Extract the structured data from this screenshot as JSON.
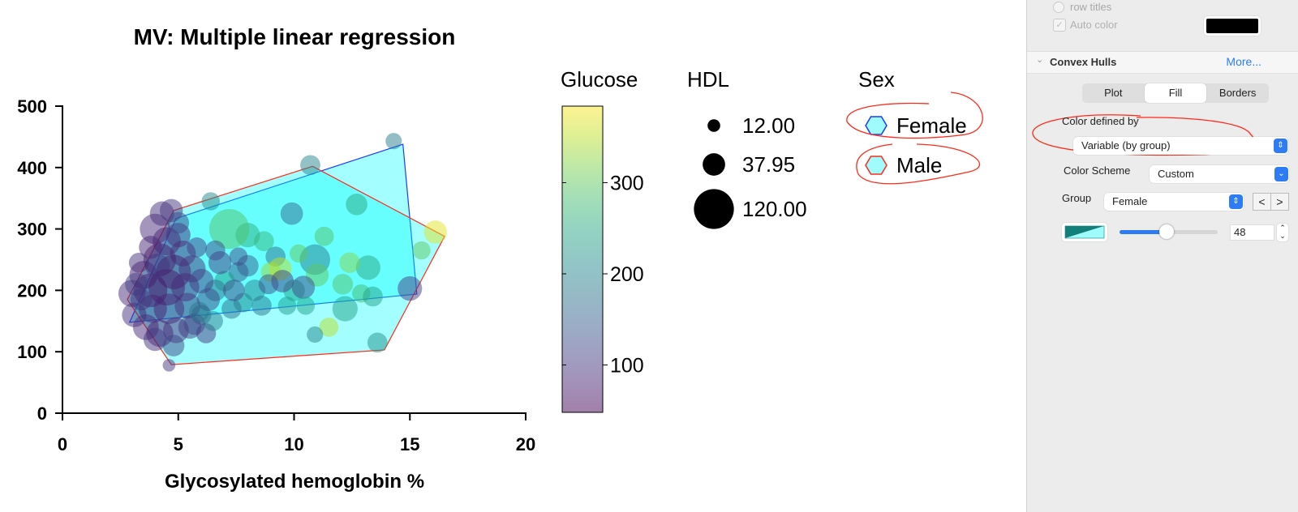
{
  "chart_data": {
    "type": "scatter",
    "title": "MV: Multiple linear regression",
    "xlabel": "Glycosylated hemoglobin %",
    "ylabel": "",
    "xlim": [
      0,
      20
    ],
    "ylim": [
      0,
      500
    ],
    "xticks": [
      "0",
      "5",
      "10",
      "15",
      "20"
    ],
    "yticks": [
      "0",
      "100",
      "200",
      "300",
      "400",
      "500"
    ],
    "grid": false,
    "color_variable": {
      "title": "Glucose",
      "range": [
        48,
        384
      ],
      "ticks": [
        "100",
        "200",
        "300"
      ],
      "colormap": "viridis"
    },
    "size_variable": {
      "title": "HDL",
      "legend": [
        "12.00",
        "37.95",
        "120.00"
      ]
    },
    "group_variable": {
      "title": "Sex",
      "groups": [
        {
          "name": "Female",
          "border": "#1a3cff",
          "fill": "#00ffff"
        },
        {
          "name": "Male",
          "border": "#ff2a1a",
          "fill": "#00ffff"
        }
      ]
    },
    "hulls": {
      "Female": [
        [
          14.7,
          438
        ],
        [
          15.3,
          194
        ],
        [
          2.9,
          148
        ],
        [
          4.9,
          317
        ]
      ],
      "Male": [
        [
          10.8,
          402
        ],
        [
          16.5,
          288
        ],
        [
          13.9,
          103
        ],
        [
          4.7,
          79
        ],
        [
          2.8,
          185
        ],
        [
          4.8,
          330
        ]
      ]
    },
    "points_columns": [
      "hba1c",
      "value",
      "glucose",
      "hdl",
      "sex"
    ],
    "points": [
      [
        14.3,
        443,
        190,
        20,
        "Female"
      ],
      [
        10.7,
        404,
        200,
        30,
        "Male"
      ],
      [
        16.1,
        295,
        370,
        40,
        "Male"
      ],
      [
        15.5,
        265,
        300,
        25,
        "Male"
      ],
      [
        15.0,
        203,
        110,
        45,
        "Female"
      ],
      [
        13.6,
        115,
        215,
        30,
        "Male"
      ],
      [
        11.5,
        140,
        350,
        28,
        "Female"
      ],
      [
        10.9,
        128,
        200,
        20,
        "Female"
      ],
      [
        4.6,
        78,
        105,
        12,
        "Male"
      ],
      [
        12.7,
        340,
        250,
        35,
        "Male"
      ],
      [
        13.2,
        237,
        250,
        45,
        "Female"
      ],
      [
        12.4,
        245,
        320,
        32,
        "Male"
      ],
      [
        11.3,
        288,
        290,
        28,
        "Female"
      ],
      [
        10.9,
        250,
        190,
        70,
        "Female"
      ],
      [
        9.9,
        325,
        160,
        38,
        "Male"
      ],
      [
        8.0,
        290,
        260,
        45,
        "Male"
      ],
      [
        8.7,
        280,
        270,
        30,
        "Female"
      ],
      [
        6.4,
        345,
        210,
        25,
        "Male"
      ],
      [
        7.2,
        300,
        290,
        120,
        "Male"
      ],
      [
        9.2,
        255,
        170,
        30,
        "Female"
      ],
      [
        12.9,
        195,
        280,
        25,
        "Female"
      ],
      [
        13.4,
        190,
        240,
        30,
        "Male"
      ],
      [
        12.1,
        210,
        290,
        32,
        "Female"
      ],
      [
        11.0,
        225,
        300,
        40,
        "Male"
      ],
      [
        10.2,
        260,
        300,
        25,
        "Female"
      ],
      [
        9.0,
        230,
        330,
        30,
        "Male"
      ],
      [
        9.4,
        235,
        350,
        40,
        "Female"
      ],
      [
        10.0,
        200,
        240,
        35,
        "Male"
      ],
      [
        10.4,
        205,
        120,
        40,
        "Female"
      ],
      [
        9.5,
        215,
        110,
        38,
        "Male"
      ],
      [
        8.3,
        200,
        200,
        35,
        "Female"
      ],
      [
        8.0,
        240,
        150,
        35,
        "Male"
      ],
      [
        7.6,
        230,
        140,
        30,
        "Female"
      ],
      [
        7.0,
        215,
        230,
        32,
        "Male"
      ],
      [
        7.8,
        180,
        200,
        28,
        "Female"
      ],
      [
        7.3,
        170,
        170,
        30,
        "Male"
      ],
      [
        6.6,
        200,
        170,
        35,
        "Female"
      ],
      [
        8.6,
        175,
        180,
        30,
        "Male"
      ],
      [
        9.7,
        175,
        230,
        25,
        "Female"
      ],
      [
        10.5,
        175,
        240,
        25,
        "Male"
      ],
      [
        12.2,
        170,
        240,
        48,
        "Female"
      ],
      [
        6.0,
        160,
        160,
        30,
        "Male"
      ],
      [
        5.5,
        140,
        110,
        40,
        "Female"
      ],
      [
        6.2,
        130,
        100,
        30,
        "Male"
      ],
      [
        4.3,
        325,
        95,
        45,
        "Male"
      ],
      [
        4.7,
        330,
        100,
        40,
        "Female"
      ],
      [
        4.0,
        300,
        90,
        70,
        "Male"
      ],
      [
        4.5,
        280,
        80,
        60,
        "Female"
      ],
      [
        5.0,
        290,
        90,
        45,
        "Male"
      ],
      [
        3.8,
        270,
        85,
        40,
        "Female"
      ],
      [
        3.3,
        245,
        95,
        30,
        "Male"
      ],
      [
        4.2,
        250,
        75,
        80,
        "Female"
      ],
      [
        5.2,
        260,
        85,
        50,
        "Male"
      ],
      [
        3.5,
        225,
        80,
        60,
        "Female"
      ],
      [
        4.8,
        230,
        70,
        90,
        "Male"
      ],
      [
        5.6,
        235,
        95,
        55,
        "Female"
      ],
      [
        3.0,
        195,
        90,
        55,
        "Male"
      ],
      [
        3.8,
        200,
        70,
        85,
        "Female"
      ],
      [
        4.5,
        205,
        65,
        100,
        "Male"
      ],
      [
        5.3,
        205,
        85,
        60,
        "Female"
      ],
      [
        6.0,
        215,
        110,
        45,
        "Male"
      ],
      [
        6.8,
        245,
        105,
        40,
        "Female"
      ],
      [
        3.1,
        160,
        95,
        45,
        "Female"
      ],
      [
        3.9,
        170,
        80,
        60,
        "Male"
      ],
      [
        4.6,
        170,
        80,
        70,
        "Female"
      ],
      [
        5.4,
        175,
        95,
        50,
        "Male"
      ],
      [
        6.3,
        185,
        120,
        40,
        "Female"
      ],
      [
        3.6,
        140,
        90,
        50,
        "Male"
      ],
      [
        4.2,
        130,
        75,
        55,
        "Female"
      ],
      [
        4.9,
        135,
        90,
        50,
        "Male"
      ],
      [
        5.7,
        145,
        120,
        35,
        "Female"
      ],
      [
        4.0,
        120,
        100,
        40,
        "Male"
      ],
      [
        4.8,
        110,
        120,
        35,
        "Female"
      ],
      [
        5.9,
        165,
        180,
        30,
        "Male"
      ],
      [
        6.5,
        150,
        190,
        30,
        "Female"
      ],
      [
        7.4,
        200,
        120,
        35,
        "Male"
      ],
      [
        3.2,
        210,
        110,
        40,
        "Female"
      ],
      [
        3.4,
        185,
        100,
        35,
        "Male"
      ],
      [
        5.0,
        310,
        120,
        35,
        "Female"
      ],
      [
        4.1,
        240,
        100,
        45,
        "Male"
      ],
      [
        5.8,
        270,
        110,
        30,
        "Female"
      ],
      [
        6.6,
        265,
        120,
        30,
        "Male"
      ],
      [
        7.6,
        255,
        120,
        25,
        "Female"
      ],
      [
        8.9,
        210,
        130,
        30,
        "Male"
      ]
    ],
    "colors": {
      "hull_fill": "#00ffff",
      "female_border": "#1a3cff",
      "male_border": "#ff2a1a",
      "annotation": "#ff2a1a"
    }
  },
  "panel": {
    "row_titles_label": "row titles",
    "auto_color_label": "Auto color",
    "auto_color_checked": true,
    "auto_color_swatch": "#000000",
    "section_title": "Convex Hulls",
    "more_link": "More...",
    "tabs": [
      {
        "label": "Plot"
      },
      {
        "label": "Fill",
        "selected": true
      },
      {
        "label": "Borders"
      }
    ],
    "color_defined_by_label": "Color defined by",
    "color_defined_by_value": "Variable (by group)",
    "color_scheme_label": "Color Scheme",
    "color_scheme_value": "Custom",
    "group_label": "Group",
    "group_value": "Female",
    "prev_label": "<",
    "next_label": ">",
    "fill_swatch_colors": [
      "#127f7a",
      "#9ffcfc"
    ],
    "opacity_percent": 48,
    "opacity_value": "48"
  }
}
